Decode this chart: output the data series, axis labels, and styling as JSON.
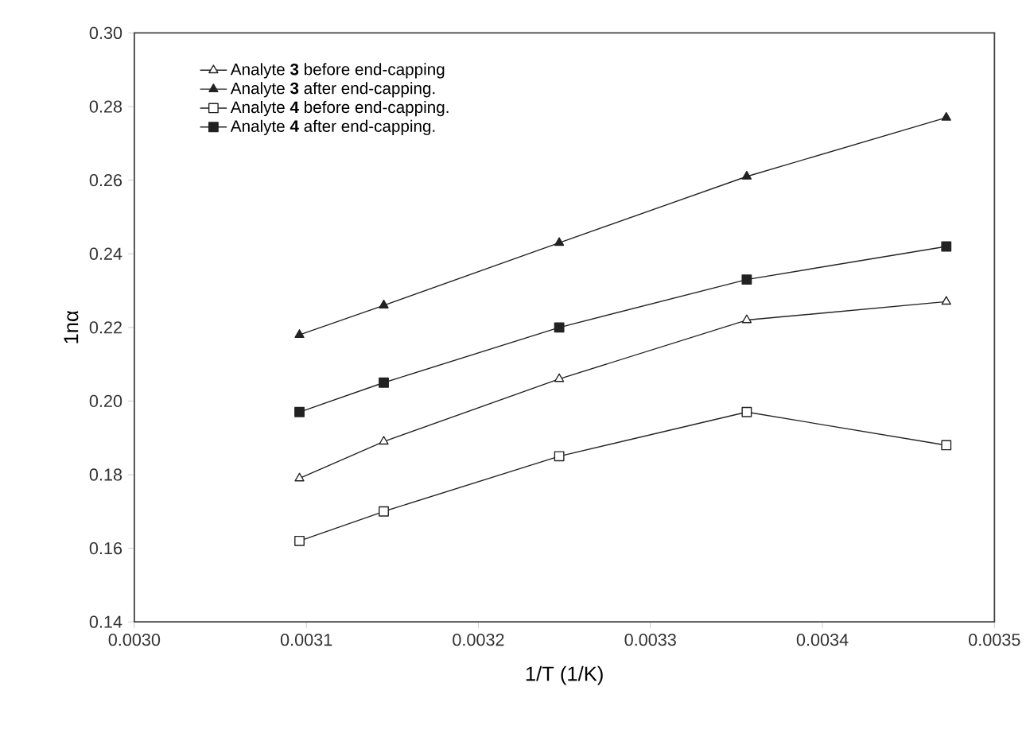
{
  "chart_data": {
    "type": "line",
    "xlabel": "1/T (1/K)",
    "ylabel": "1nα",
    "x": [
      0.003096,
      0.003145,
      0.003247,
      0.003356,
      0.003472
    ],
    "series": [
      {
        "name": "Analyte **3** before end-capping",
        "color": "#222222",
        "marker": "triangle",
        "values": [
          0.179,
          0.189,
          0.206,
          0.222,
          0.227
        ]
      },
      {
        "name": "Analyte **3** after end-capping.",
        "color": "#222222",
        "marker": "triangle",
        "values": [
          0.218,
          0.226,
          0.243,
          0.261,
          0.277
        ]
      },
      {
        "name": "Analyte **4** before end-capping.",
        "color": "#222222",
        "marker": "square",
        "values": [
          0.162,
          0.17,
          0.185,
          0.197,
          0.188
        ]
      },
      {
        "name": "Analyte **4** after end-capping.",
        "color": "#222222",
        "marker": "square",
        "values": [
          0.197,
          0.205,
          0.22,
          0.233,
          0.242
        ]
      }
    ],
    "xlim": [
      0.003,
      0.0035
    ],
    "xticks": [
      {
        "value": 0.003,
        "label": "0.0030"
      },
      {
        "value": 0.0031,
        "label": "0.0031"
      },
      {
        "value": 0.0032,
        "label": "0.0032"
      },
      {
        "value": 0.0033,
        "label": "0.0033"
      },
      {
        "value": 0.0034,
        "label": "0.0034"
      },
      {
        "value": 0.0035,
        "label": "0.0035"
      }
    ],
    "ylim": [
      0.14,
      0.3
    ],
    "yticks": [
      {
        "value": 0.14,
        "label": "0.14"
      },
      {
        "value": 0.16,
        "label": "0.16"
      },
      {
        "value": 0.18,
        "label": "0.18"
      },
      {
        "value": 0.2,
        "label": "0.20"
      },
      {
        "value": 0.22,
        "label": "0.22"
      },
      {
        "value": 0.24,
        "label": "0.24"
      },
      {
        "value": 0.26,
        "label": "0.26"
      },
      {
        "value": 0.28,
        "label": "0.28"
      },
      {
        "value": 0.3,
        "label": "0.30"
      }
    ],
    "grid": false,
    "legend": "top left",
    "line_style": "solid"
  }
}
